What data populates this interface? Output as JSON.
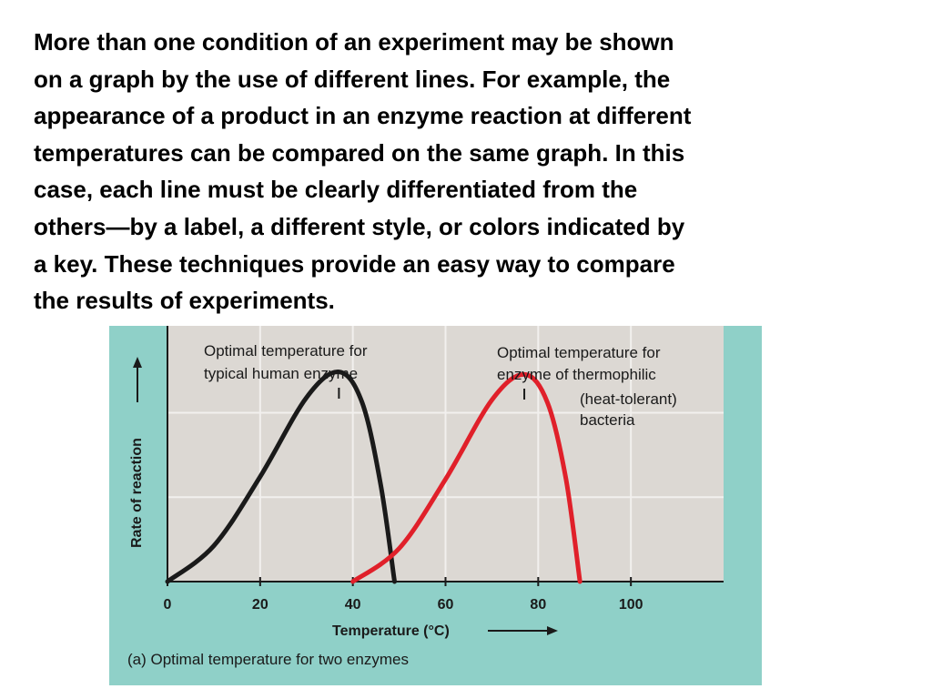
{
  "paragraph": {
    "lines": [
      "More than one condition of an experiment may be shown",
      "on a graph by the use of different lines. For example, the",
      "appearance of a product in an enzyme reaction at different",
      "temperatures can be compared on the same graph. In this",
      "case, each line must be clearly differentiated from the",
      "others—by a label, a different style, or colors indicated by",
      "a key. These techniques provide an easy way to compare",
      "the results of experiments."
    ]
  },
  "colors": {
    "frame": "#8fd0c8",
    "plot_background": "#dcd8d3",
    "grid": "#f2f0ee",
    "human_enzyme_line": "#1a1a1a",
    "thermophilic_enzyme_line": "#e0202a",
    "text": "#1a1a1a"
  },
  "chart_data": {
    "type": "line",
    "caption": "(a) Optimal temperature for two enzymes",
    "xlabel": "Temperature (°C)",
    "ylabel": "Rate of reaction",
    "x_ticks": [
      "0",
      "20",
      "40",
      "60",
      "80",
      "100"
    ],
    "xlim": [
      0,
      120
    ],
    "ylim": [
      0,
      1
    ],
    "grid": true,
    "y_tick_labels_shown": false,
    "series": [
      {
        "label_line1": "Optimal temperature for",
        "label_line2": "typical human enzyme",
        "label_line3": "",
        "label_line4": "",
        "optimum_temp": 37,
        "color": "#1a1a1a",
        "points": [
          [
            0,
            0.0
          ],
          [
            10,
            0.14
          ],
          [
            20,
            0.41
          ],
          [
            30,
            0.72
          ],
          [
            37,
            0.82
          ],
          [
            42,
            0.7
          ],
          [
            46,
            0.38
          ],
          [
            49,
            0.0
          ]
        ]
      },
      {
        "label_line1": "Optimal temperature for",
        "label_line2": "enzyme of thermophilic",
        "label_line3": "(heat-tolerant)",
        "label_line4": "bacteria",
        "optimum_temp": 77,
        "color": "#e0202a",
        "points": [
          [
            40,
            0.0
          ],
          [
            50,
            0.13
          ],
          [
            60,
            0.4
          ],
          [
            70,
            0.71
          ],
          [
            77,
            0.81
          ],
          [
            82,
            0.7
          ],
          [
            86,
            0.4
          ],
          [
            89,
            0.0
          ]
        ]
      }
    ]
  }
}
